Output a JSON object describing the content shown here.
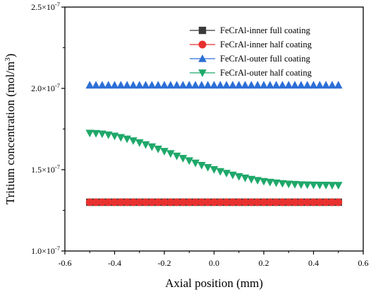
{
  "chart_data": {
    "type": "scatter",
    "title": "",
    "xlabel": "Axial position (mm)",
    "ylabel_main": "Tritium concentration (mol/m",
    "ylabel_sup": "3",
    "ylabel_close": ")",
    "xlim": [
      -0.6,
      0.6
    ],
    "ylim": [
      1e-07,
      2.5e-07
    ],
    "x_ticks": [
      -0.6,
      -0.4,
      -0.2,
      0.0,
      0.2,
      0.4,
      0.6
    ],
    "x_tick_labels": [
      "-0.6",
      "-0.4",
      "-0.2",
      "0.0",
      "0.2",
      "0.4",
      "0.6"
    ],
    "y_ticks": [
      {
        "value": 1e-07,
        "mant": "1.0",
        "exp": "-7"
      },
      {
        "value": 1.5e-07,
        "mant": "1.5",
        "exp": "-7"
      },
      {
        "value": 2e-07,
        "mant": "2.0",
        "exp": "-7"
      },
      {
        "value": 2.5e-07,
        "mant": "2.5",
        "exp": "-7"
      }
    ],
    "y_tick_times": "×10",
    "grid": false,
    "legend_position": "top-right",
    "x": [
      -0.5,
      -0.475,
      -0.45,
      -0.425,
      -0.4,
      -0.375,
      -0.35,
      -0.325,
      -0.3,
      -0.275,
      -0.25,
      -0.225,
      -0.2,
      -0.175,
      -0.15,
      -0.125,
      -0.1,
      -0.075,
      -0.05,
      -0.025,
      0.0,
      0.025,
      0.05,
      0.075,
      0.1,
      0.125,
      0.15,
      0.175,
      0.2,
      0.225,
      0.25,
      0.275,
      0.3,
      0.325,
      0.35,
      0.375,
      0.4,
      0.425,
      0.45,
      0.475,
      0.5
    ],
    "series": [
      {
        "name": "FeCrAl-inner full coating",
        "marker": "square",
        "color": "#3a3a3a",
        "values": [
          1.3e-07,
          1.3e-07,
          1.3e-07,
          1.3e-07,
          1.3e-07,
          1.3e-07,
          1.3e-07,
          1.3e-07,
          1.3e-07,
          1.3e-07,
          1.3e-07,
          1.3e-07,
          1.3e-07,
          1.3e-07,
          1.3e-07,
          1.3e-07,
          1.3e-07,
          1.3e-07,
          1.3e-07,
          1.3e-07,
          1.3e-07,
          1.3e-07,
          1.3e-07,
          1.3e-07,
          1.3e-07,
          1.3e-07,
          1.3e-07,
          1.3e-07,
          1.3e-07,
          1.3e-07,
          1.3e-07,
          1.3e-07,
          1.3e-07,
          1.3e-07,
          1.3e-07,
          1.3e-07,
          1.3e-07,
          1.3e-07,
          1.3e-07,
          1.3e-07,
          1.3e-07
        ]
      },
      {
        "name": "FeCrAl-inner half coating",
        "marker": "circle",
        "color": "#e8312f",
        "values": [
          1.3e-07,
          1.3e-07,
          1.3e-07,
          1.3e-07,
          1.3e-07,
          1.3e-07,
          1.3e-07,
          1.3e-07,
          1.3e-07,
          1.3e-07,
          1.3e-07,
          1.3e-07,
          1.3e-07,
          1.3e-07,
          1.3e-07,
          1.3e-07,
          1.3e-07,
          1.3e-07,
          1.3e-07,
          1.3e-07,
          1.3e-07,
          1.3e-07,
          1.3e-07,
          1.3e-07,
          1.3e-07,
          1.3e-07,
          1.3e-07,
          1.3e-07,
          1.3e-07,
          1.3e-07,
          1.3e-07,
          1.3e-07,
          1.3e-07,
          1.3e-07,
          1.3e-07,
          1.3e-07,
          1.3e-07,
          1.3e-07,
          1.3e-07,
          1.3e-07,
          1.3e-07
        ]
      },
      {
        "name": "FeCrAl-outer full coating",
        "marker": "triangle-up",
        "color": "#2d6fd6",
        "values": [
          2.02e-07,
          2.02e-07,
          2.02e-07,
          2.02e-07,
          2.02e-07,
          2.02e-07,
          2.02e-07,
          2.02e-07,
          2.02e-07,
          2.02e-07,
          2.02e-07,
          2.02e-07,
          2.02e-07,
          2.02e-07,
          2.02e-07,
          2.02e-07,
          2.02e-07,
          2.02e-07,
          2.02e-07,
          2.02e-07,
          2.02e-07,
          2.02e-07,
          2.02e-07,
          2.02e-07,
          2.02e-07,
          2.02e-07,
          2.02e-07,
          2.02e-07,
          2.02e-07,
          2.02e-07,
          2.02e-07,
          2.02e-07,
          2.02e-07,
          2.02e-07,
          2.02e-07,
          2.02e-07,
          2.02e-07,
          2.02e-07,
          2.02e-07,
          2.02e-07,
          2.02e-07
        ]
      },
      {
        "name": "FeCrAl-outer half coating",
        "marker": "triangle-down",
        "color": "#1fa86a",
        "values": [
          1.725e-07,
          1.723e-07,
          1.72e-07,
          1.714e-07,
          1.707e-07,
          1.698e-07,
          1.689e-07,
          1.678e-07,
          1.666e-07,
          1.654e-07,
          1.641e-07,
          1.627e-07,
          1.613e-07,
          1.599e-07,
          1.584e-07,
          1.57e-07,
          1.555e-07,
          1.541e-07,
          1.527e-07,
          1.514e-07,
          1.501e-07,
          1.489e-07,
          1.478e-07,
          1.467e-07,
          1.458e-07,
          1.449e-07,
          1.441e-07,
          1.434e-07,
          1.428e-07,
          1.423e-07,
          1.419e-07,
          1.415e-07,
          1.412e-07,
          1.41e-07,
          1.408e-07,
          1.407e-07,
          1.406e-07,
          1.405e-07,
          1.405e-07,
          1.404e-07,
          1.404e-07
        ]
      }
    ]
  }
}
